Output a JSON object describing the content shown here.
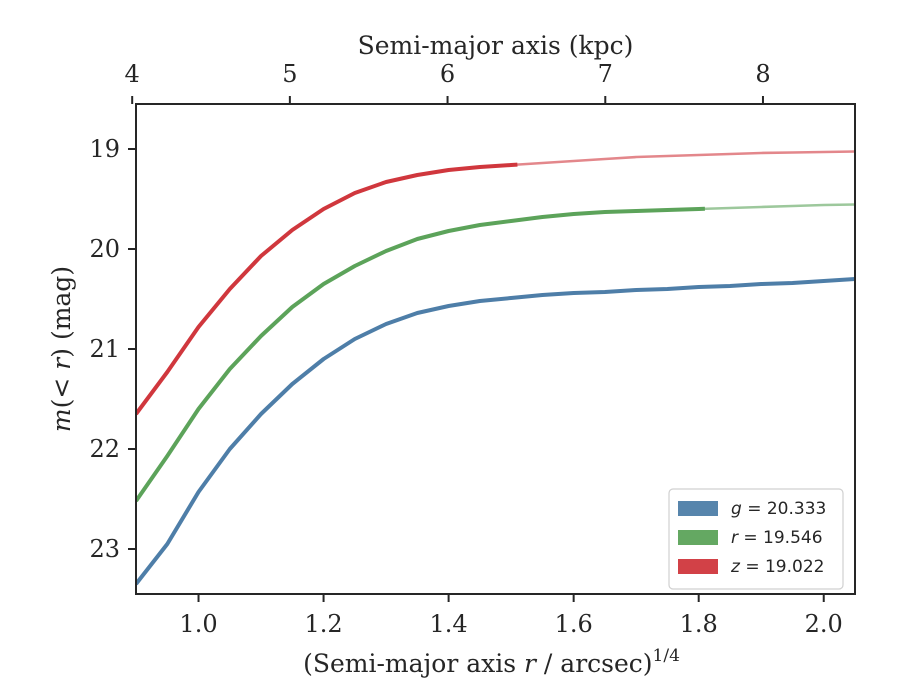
{
  "chart_data": {
    "type": "line",
    "xlabel": "(Semi-major axis r / arcsec)^{1/4}",
    "xlabel_parts": {
      "main": "(Semi-major axis ",
      "italic": "r",
      "rest": " / arcsec)",
      "sup": "1/4"
    },
    "ylabel": "m(< r) (mag)",
    "ylabel_parts": {
      "m": "m",
      "inner": "(< ",
      "r": "r",
      "close": ")",
      "unit": " (mag)"
    },
    "top_xlabel": "Semi-major axis (kpc)",
    "xlim": [
      0.9,
      2.05
    ],
    "ylim": [
      23.45,
      18.55
    ],
    "y_inverted": true,
    "xticks": [
      1.0,
      1.2,
      1.4,
      1.6,
      1.8,
      2.0
    ],
    "xtick_labels": [
      "1.0",
      "1.2",
      "1.4",
      "1.6",
      "1.8",
      "2.0"
    ],
    "yticks": [
      19,
      20,
      21,
      22,
      23
    ],
    "ytick_labels": [
      "19",
      "20",
      "21",
      "22",
      "23"
    ],
    "top_ticks_kpc": [
      4,
      5,
      6,
      7,
      8
    ],
    "top_tick_labels": [
      "4",
      "5",
      "6",
      "7",
      "8"
    ],
    "top_ticks_x": [
      0.8939,
      1.1461,
      1.3983,
      1.6506,
      1.9028
    ],
    "legend_placement": "lower-right",
    "grid": false,
    "series": [
      {
        "name": "g = 20.333",
        "legend_var": "g",
        "legend_value": "= 20.333",
        "color": "#4e7ea8",
        "x": [
          0.9,
          0.95,
          1.0,
          1.05,
          1.1,
          1.15,
          1.2,
          1.25,
          1.3,
          1.35,
          1.4,
          1.45,
          1.5,
          1.55,
          1.6,
          1.65,
          1.7,
          1.75,
          1.8,
          1.85,
          1.9,
          1.95,
          2.0,
          2.05
        ],
        "values": [
          23.35,
          22.95,
          22.43,
          22.0,
          21.65,
          21.35,
          21.1,
          20.9,
          20.75,
          20.64,
          20.57,
          20.52,
          20.49,
          20.46,
          20.44,
          20.43,
          20.41,
          20.4,
          20.38,
          20.37,
          20.35,
          20.34,
          20.32,
          20.3
        ],
        "solid_until_x": 2.05
      },
      {
        "name": "r = 19.546",
        "legend_var": "r",
        "legend_value": "= 19.546",
        "color": "#5ca35a",
        "x": [
          0.9,
          0.95,
          1.0,
          1.05,
          1.1,
          1.15,
          1.2,
          1.25,
          1.3,
          1.35,
          1.4,
          1.45,
          1.5,
          1.55,
          1.6,
          1.65,
          1.7,
          1.75,
          1.8,
          1.85,
          1.9,
          1.95,
          2.0,
          2.05
        ],
        "values": [
          22.52,
          22.07,
          21.6,
          21.2,
          20.87,
          20.58,
          20.35,
          20.17,
          20.02,
          19.9,
          19.82,
          19.76,
          19.72,
          19.68,
          19.65,
          19.63,
          19.62,
          19.61,
          19.6,
          19.59,
          19.58,
          19.57,
          19.56,
          19.555
        ],
        "solid_until_x": 1.81
      },
      {
        "name": "z = 19.022",
        "legend_var": "z",
        "legend_value": "= 19.022",
        "color": "#d0373d",
        "x": [
          0.9,
          0.95,
          1.0,
          1.05,
          1.1,
          1.15,
          1.2,
          1.25,
          1.3,
          1.35,
          1.4,
          1.45,
          1.5,
          1.55,
          1.6,
          1.65,
          1.7,
          1.75,
          1.8,
          1.85,
          1.9,
          1.95,
          2.0,
          2.05
        ],
        "values": [
          21.65,
          21.23,
          20.78,
          20.4,
          20.07,
          19.81,
          19.6,
          19.44,
          19.33,
          19.26,
          19.21,
          19.18,
          19.16,
          19.14,
          19.12,
          19.1,
          19.08,
          19.07,
          19.06,
          19.05,
          19.04,
          19.035,
          19.03,
          19.025
        ],
        "solid_until_x": 1.51
      }
    ]
  }
}
